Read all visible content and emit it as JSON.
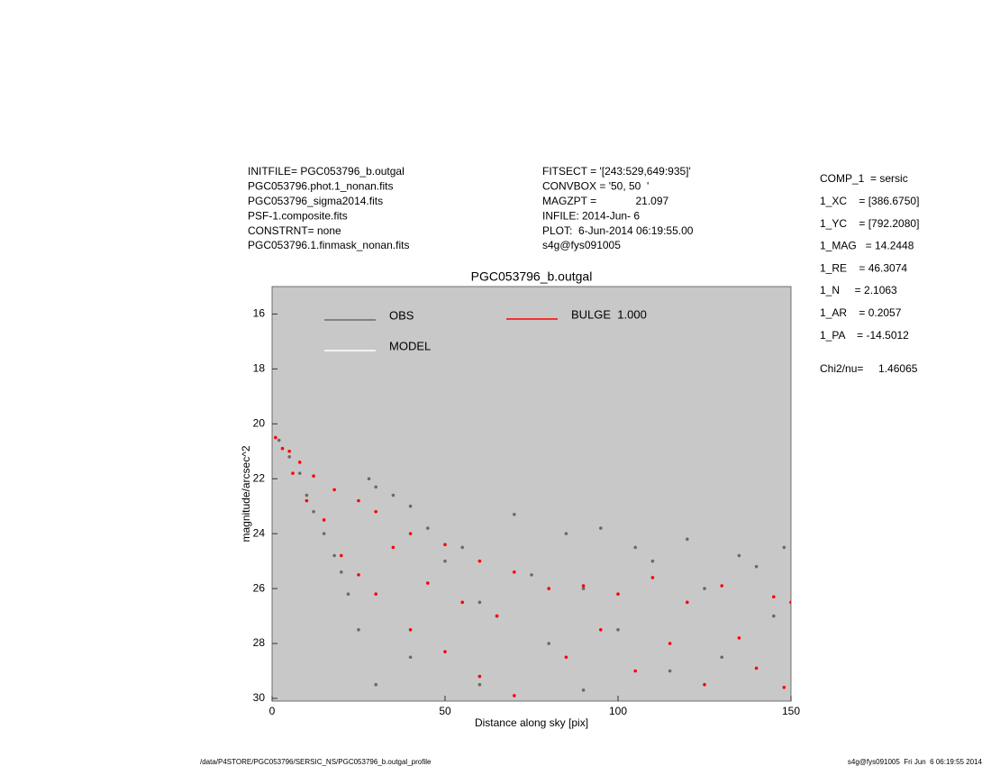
{
  "header_left": [
    "INITFILE= PGC053796_b.outgal",
    "PGC053796.phot.1_nonan.fits",
    "PGC053796_sigma2014.fits",
    "PSF-1.composite.fits",
    "CONSTRNT= none",
    "PGC053796.1.finmask_nonan.fits"
  ],
  "header_center": [
    "FITSECT = '[243:529,649:935]'",
    "CONVBOX = '50, 50  '",
    "MAGZPT =             21.097",
    "INFILE: 2014-Jun- 6",
    "PLOT:  6-Jun-2014 06:19:55.00",
    "s4g@fys091005"
  ],
  "fit_params": [
    "COMP_1  = sersic",
    "1_XC    = [386.6750]",
    "1_YC    = [792.2080]",
    "1_MAG   = 14.2448",
    "1_RE    = 46.3074",
    "1_N     = 2.1063",
    "1_AR    = 0.2057",
    "1_PA    = -14.5012",
    "Chi2/nu=     1.46065"
  ],
  "footer_left": "/data/P4STORE/PGC053796/SERSIC_NS/PGC053796_b.outgal_profile",
  "footer_right": "s4g@fys091005  Fri Jun  6 06:19:55 2014",
  "chart_data": {
    "type": "scatter",
    "title": "PGC053796_b.outgal",
    "x_label": "Distance along sky [pix]",
    "y_label": "magnitude/arcsec^2",
    "xlim": [
      0,
      150
    ],
    "ylim": [
      30.1,
      15
    ],
    "xticks": [
      0,
      50,
      100,
      150
    ],
    "yticks": [
      16,
      18,
      20,
      22,
      24,
      26,
      28,
      30
    ],
    "plot_background": "#c8c8c8",
    "series": [
      {
        "name": "OBS",
        "color": "#6a6a6a",
        "x": [
          2,
          5,
          8,
          10,
          12,
          15,
          18,
          20,
          22,
          25,
          28,
          30,
          35,
          40,
          45,
          50,
          55,
          60,
          65,
          70,
          75,
          80,
          85,
          90,
          95,
          100,
          105,
          110,
          115,
          120,
          125,
          130,
          135,
          140,
          145,
          148,
          30,
          40,
          60,
          90
        ],
        "values": [
          20.6,
          21.2,
          21.8,
          22.6,
          23.2,
          24.0,
          24.8,
          25.4,
          26.2,
          27.5,
          22.0,
          22.3,
          22.6,
          23.0,
          23.8,
          25.0,
          24.5,
          26.5,
          27.0,
          23.3,
          25.5,
          28.0,
          24.0,
          26.0,
          23.8,
          27.5,
          24.5,
          25.0,
          29.0,
          24.2,
          26.0,
          28.5,
          24.8,
          25.2,
          27.0,
          24.5,
          29.5,
          28.5,
          29.5,
          29.7
        ]
      },
      {
        "name": "MODEL",
        "color": "#ffffff",
        "x": [],
        "values": []
      },
      {
        "name": "BULGE  1.000",
        "color": "#ff0000",
        "x": [
          1,
          3,
          5,
          6,
          8,
          10,
          12,
          15,
          18,
          20,
          25,
          25,
          30,
          30,
          35,
          40,
          40,
          45,
          50,
          50,
          55,
          60,
          60,
          65,
          70,
          70,
          80,
          85,
          90,
          95,
          100,
          105,
          110,
          115,
          120,
          125,
          130,
          135,
          140,
          145,
          150,
          148
        ],
        "values": [
          20.5,
          20.9,
          21.0,
          21.8,
          21.4,
          22.8,
          21.9,
          23.5,
          22.4,
          24.8,
          22.8,
          25.5,
          23.2,
          26.2,
          24.5,
          24.0,
          27.5,
          25.8,
          24.4,
          28.3,
          26.5,
          25.0,
          29.2,
          27.0,
          25.4,
          29.9,
          26.0,
          28.5,
          25.9,
          27.5,
          26.2,
          29.0,
          25.6,
          28.0,
          26.5,
          29.5,
          25.9,
          27.8,
          28.9,
          26.3,
          26.5,
          29.6
        ]
      }
    ]
  }
}
